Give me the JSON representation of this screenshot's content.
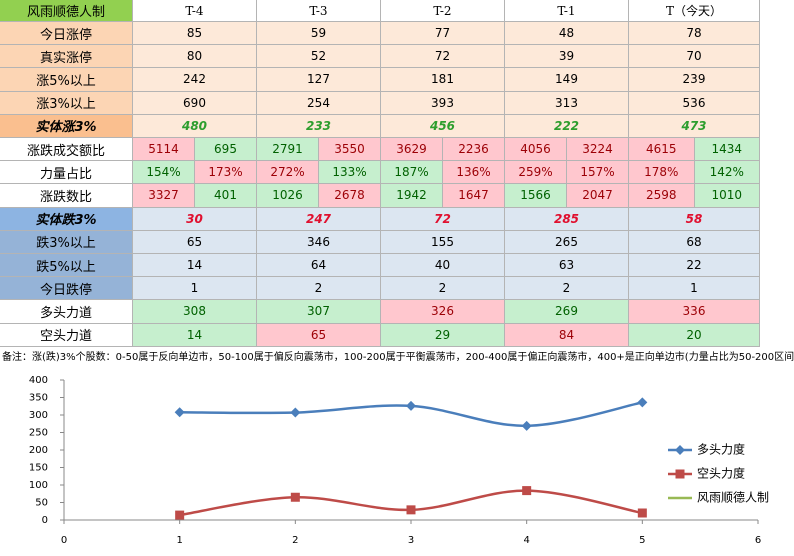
{
  "table": {
    "header": [
      "风雨顺德人制",
      "T-4",
      "T-3",
      "T-2",
      "T-1",
      "T（今天）"
    ],
    "rows": [
      {
        "label": "今日涨停",
        "values": [
          85,
          59,
          77,
          48,
          78
        ]
      },
      {
        "label": "真实涨停",
        "values": [
          80,
          52,
          72,
          39,
          70
        ]
      },
      {
        "label": "涨5%以上",
        "values": [
          242,
          127,
          181,
          149,
          239
        ]
      },
      {
        "label": "涨3%以上",
        "values": [
          690,
          254,
          393,
          313,
          536
        ]
      },
      {
        "label": "实体涨3%",
        "values": [
          480,
          233,
          456,
          222,
          473
        ]
      },
      {
        "label": "涨跌成交额比",
        "values": [
          5114,
          695,
          2791,
          3550,
          3629,
          2236,
          4056,
          3224,
          4615,
          1434
        ]
      },
      {
        "label": "力量占比",
        "values": [
          "154%",
          "173%",
          "272%",
          "133%",
          "187%",
          "136%",
          "259%",
          "157%",
          "178%",
          "142%"
        ]
      },
      {
        "label": "涨跌数比",
        "values": [
          3327,
          401,
          1026,
          2678,
          1942,
          1647,
          1566,
          2047,
          2598,
          1010
        ]
      },
      {
        "label": "实体跌3%",
        "values": [
          30,
          247,
          72,
          285,
          58
        ]
      },
      {
        "label": "跌3%以上",
        "values": [
          65,
          346,
          155,
          265,
          68
        ]
      },
      {
        "label": "跌5%以上",
        "values": [
          14,
          64,
          40,
          63,
          22
        ]
      },
      {
        "label": "今日跌停",
        "values": [
          1,
          2,
          2,
          2,
          1
        ]
      },
      {
        "label": "多头力道",
        "values": [
          308,
          307,
          326,
          269,
          336
        ]
      },
      {
        "label": "空头力道",
        "values": [
          14,
          65,
          29,
          84,
          20
        ]
      }
    ],
    "note": "备注：涨(跌)3%个股数：0-50属于反向单边市，50-100属于偏反向震荡市，100-200属于平衡震荡市，200-400属于偏正向震荡市，400+是正向单边市(力量占比为50-200区间"
  },
  "chart_data": {
    "type": "line",
    "x": [
      1,
      2,
      3,
      4,
      5
    ],
    "series": [
      {
        "name": "多头力度",
        "color": "#4a7ebb",
        "values": [
          308,
          307,
          326,
          269,
          336
        ]
      },
      {
        "name": "空头力度",
        "color": "#be4b48",
        "values": [
          14,
          65,
          29,
          84,
          20
        ]
      },
      {
        "name": "风雨顺德人制",
        "color": "#98b954",
        "values": [
          null,
          null,
          null,
          null,
          null
        ]
      }
    ],
    "xlim": [
      0,
      6
    ],
    "xticks": [
      0,
      1,
      2,
      3,
      4,
      5,
      6
    ],
    "ylim": [
      0,
      400
    ],
    "yticks": [
      0,
      50,
      100,
      150,
      200,
      250,
      300,
      350,
      400
    ],
    "grid": false,
    "legend": "right"
  }
}
